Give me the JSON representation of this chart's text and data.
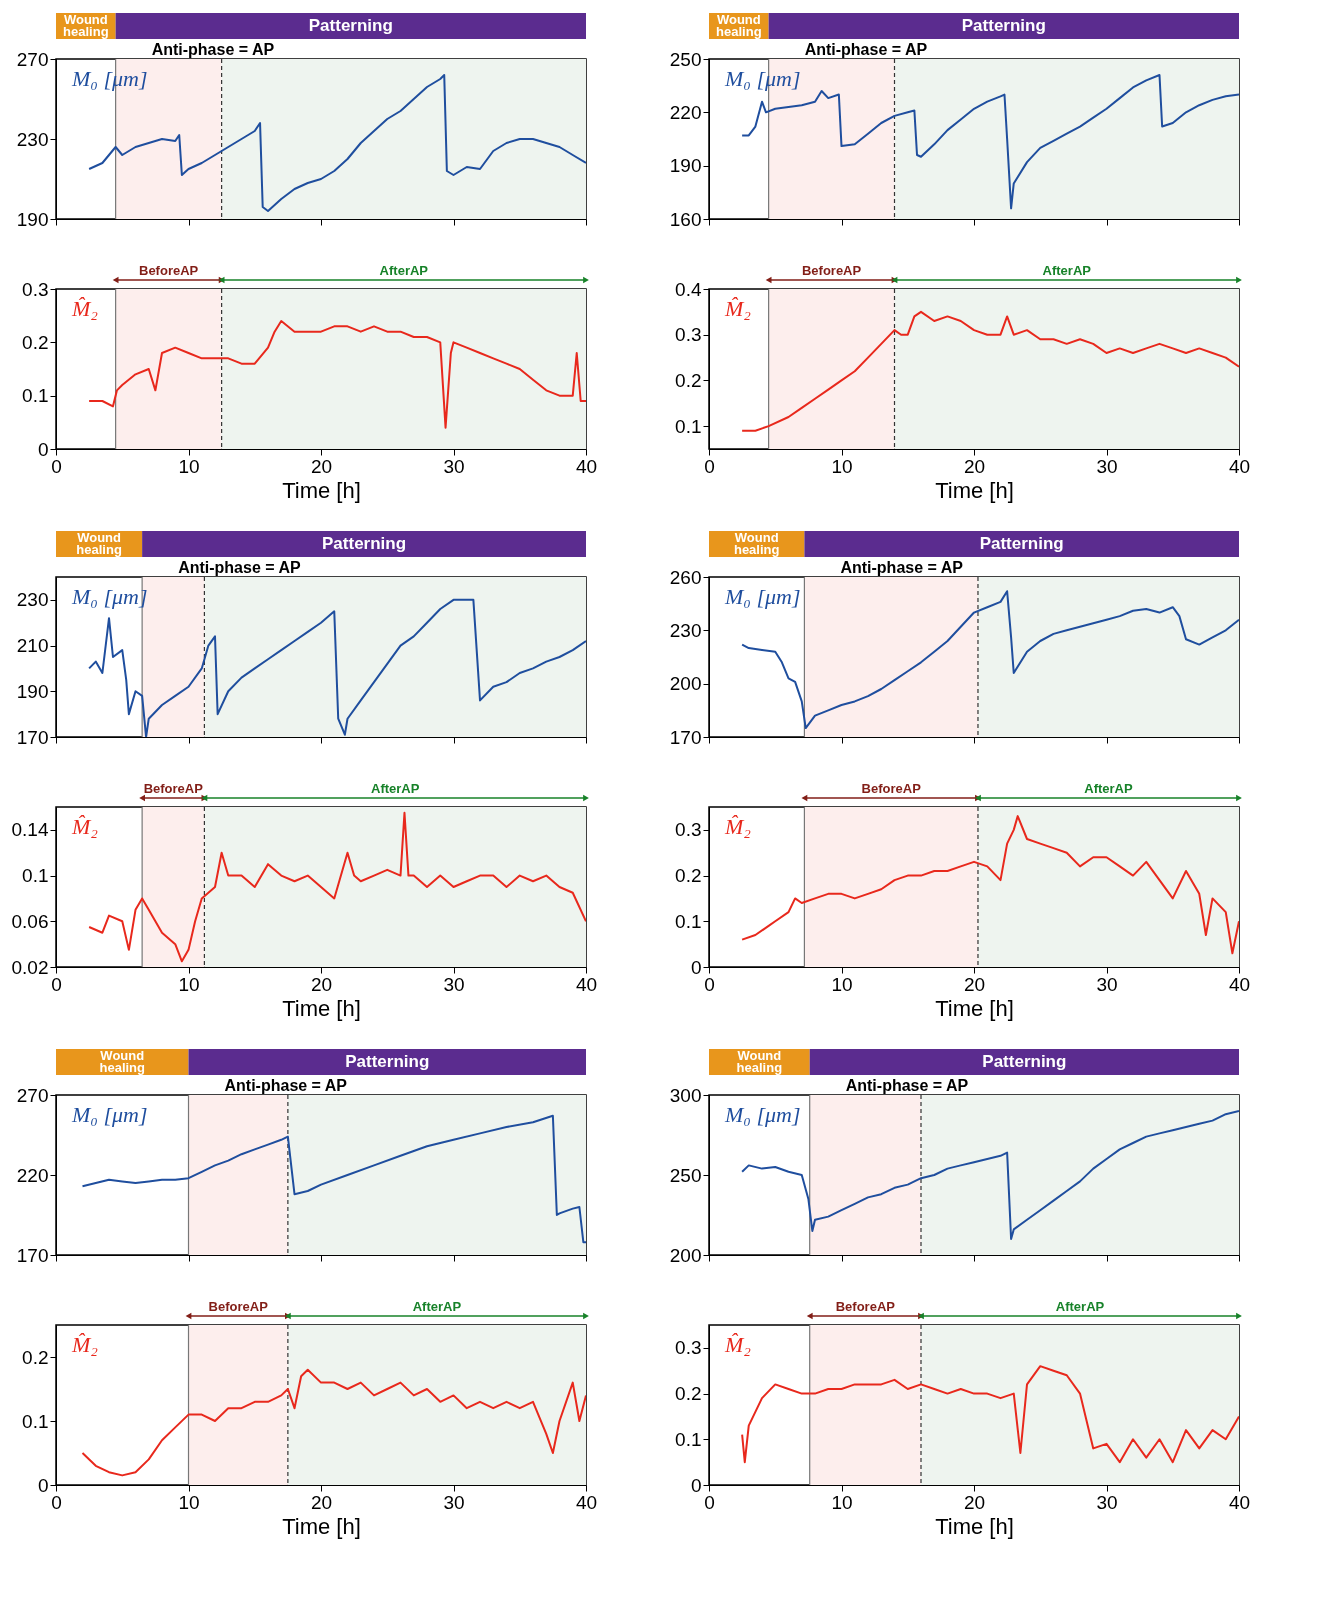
{
  "chart_data": [
    {
      "type": "line",
      "grid": false,
      "tick_labels": "y",
      "xlim": [
        0,
        40
      ],
      "xticks": [
        0,
        10,
        20,
        30,
        40
      ],
      "ylim": [
        190,
        270
      ],
      "yticks": [
        190,
        230,
        270
      ],
      "x": [
        2.5,
        3.5,
        4,
        4.5,
        5,
        6,
        7,
        8,
        9,
        9.3,
        9.5,
        10,
        11,
        12,
        13,
        14,
        15,
        15.4,
        15.6,
        16,
        17,
        18,
        19,
        20,
        21,
        22,
        23,
        24,
        25,
        26,
        27,
        28,
        29,
        29.3,
        29.5,
        30,
        31,
        32,
        33,
        34,
        35,
        36,
        37,
        38,
        39,
        40
      ],
      "series": [
        {
          "name": "M₀ [μm]",
          "color": "#1f4e9e",
          "values": [
            215,
            218,
            222,
            226,
            222,
            226,
            228,
            230,
            229,
            232,
            212,
            215,
            218,
            222,
            226,
            230,
            234,
            238,
            196,
            194,
            200,
            205,
            208,
            210,
            214,
            220,
            228,
            234,
            240,
            244,
            250,
            256,
            260,
            262,
            214,
            212,
            216,
            215,
            224,
            228,
            230,
            230,
            228,
            226,
            222,
            218
          ]
        }
      ],
      "bands": [
        {
          "axis": "x",
          "from": 4.5,
          "to": 12.5,
          "color": "#fdeeed"
        },
        {
          "axis": "x",
          "from": 12.5,
          "to": 40,
          "color": "#eef4ef"
        }
      ],
      "ref_lines": [
        {
          "axis": "x",
          "value": 4.5,
          "color": "#777777",
          "line_style": "solid"
        },
        {
          "axis": "x",
          "value": 12.5,
          "color": "#333333",
          "line_style": "dashed"
        }
      ],
      "annotations": [
        "Wound\nhealing",
        "Patterning",
        "Anti-phase = AP"
      ]
    },
    {
      "type": "line",
      "grid": false,
      "xlabel": "Time [h]",
      "xlim": [
        0,
        40
      ],
      "xticks": [
        0,
        10,
        20,
        30,
        40
      ],
      "ylim": [
        0,
        0.3
      ],
      "yticks": [
        0,
        0.1,
        0.2,
        0.3
      ],
      "x": [
        2.5,
        3.5,
        4.3,
        4.6,
        5,
        6,
        7,
        7.5,
        8,
        9,
        10,
        11,
        12,
        13,
        14,
        15,
        16,
        16.5,
        17,
        18,
        19,
        20,
        21,
        22,
        23,
        24,
        25,
        26,
        27,
        28,
        29,
        29.4,
        29.8,
        30,
        31,
        32,
        33,
        34,
        35,
        36,
        37,
        38,
        39,
        39.3,
        39.6,
        40
      ],
      "series": [
        {
          "name": "M̂₂",
          "color": "#e8281c",
          "values": [
            0.09,
            0.09,
            0.08,
            0.11,
            0.12,
            0.14,
            0.15,
            0.11,
            0.18,
            0.19,
            0.18,
            0.17,
            0.17,
            0.17,
            0.16,
            0.16,
            0.19,
            0.22,
            0.24,
            0.22,
            0.22,
            0.22,
            0.23,
            0.23,
            0.22,
            0.23,
            0.22,
            0.22,
            0.21,
            0.21,
            0.2,
            0.04,
            0.18,
            0.2,
            0.19,
            0.18,
            0.17,
            0.16,
            0.15,
            0.13,
            0.11,
            0.1,
            0.1,
            0.18,
            0.09,
            0.09
          ]
        }
      ],
      "bands": [
        {
          "axis": "x",
          "from": 4.5,
          "to": 12.5,
          "label": "BeforeAP",
          "color": "#fdeeed"
        },
        {
          "axis": "x",
          "from": 12.5,
          "to": 40,
          "label": "AfterAP",
          "color": "#eef4ef"
        }
      ],
      "ref_lines": [
        {
          "axis": "x",
          "value": 4.5,
          "color": "#777777",
          "line_style": "solid"
        },
        {
          "axis": "x",
          "value": 12.5,
          "color": "#333333",
          "line_style": "dashed"
        }
      ]
    },
    {
      "type": "line",
      "grid": false,
      "tick_labels": "y",
      "xlim": [
        0,
        40
      ],
      "xticks": [
        0,
        10,
        20,
        30,
        40
      ],
      "ylim": [
        160,
        250
      ],
      "yticks": [
        160,
        190,
        220,
        250
      ],
      "x": [
        2.5,
        3,
        3.5,
        4,
        4.3,
        5,
        6,
        7,
        8,
        8.5,
        9,
        9.8,
        10,
        11,
        12,
        13,
        14,
        15,
        15.5,
        15.7,
        16,
        17,
        18,
        19,
        20,
        21,
        22,
        22.3,
        22.5,
        22.8,
        23,
        24,
        25,
        26,
        27,
        28,
        29,
        30,
        31,
        32,
        33,
        34,
        34.2,
        35,
        36,
        37,
        38,
        39,
        40
      ],
      "series": [
        {
          "name": "M₀ [μm]",
          "color": "#1f4e9e",
          "values": [
            207,
            207,
            212,
            226,
            220,
            222,
            223,
            224,
            226,
            232,
            228,
            230,
            201,
            202,
            208,
            214,
            218,
            220,
            221,
            196,
            195,
            202,
            210,
            216,
            222,
            226,
            229,
            230,
            205,
            166,
            180,
            192,
            200,
            204,
            208,
            212,
            217,
            222,
            228,
            234,
            238,
            241,
            212,
            214,
            220,
            224,
            227,
            229,
            230
          ]
        }
      ],
      "bands": [
        {
          "axis": "x",
          "from": 4.5,
          "to": 14,
          "color": "#fdeeed"
        },
        {
          "axis": "x",
          "from": 14,
          "to": 40,
          "color": "#eef4ef"
        }
      ],
      "ref_lines": [
        {
          "axis": "x",
          "value": 4.5,
          "color": "#777777",
          "line_style": "solid"
        },
        {
          "axis": "x",
          "value": 14,
          "color": "#333333",
          "line_style": "dashed"
        }
      ],
      "annotations": [
        "Wound\nhealing",
        "Patterning",
        "Anti-phase = AP"
      ]
    },
    {
      "type": "line",
      "grid": false,
      "xlabel": "Time [h]",
      "xlim": [
        0,
        40
      ],
      "xticks": [
        0,
        10,
        20,
        30,
        40
      ],
      "ylim": [
        0.05,
        0.4
      ],
      "yticks": [
        0.1,
        0.2,
        0.3,
        0.4
      ],
      "x": [
        2.5,
        3.5,
        4.5,
        6,
        7,
        8,
        9,
        10,
        11,
        12,
        13,
        14,
        14.5,
        15,
        15.5,
        16,
        17,
        18,
        19,
        20,
        21,
        22,
        22.5,
        23,
        24,
        25,
        26,
        27,
        28,
        29,
        30,
        31,
        32,
        33,
        34,
        35,
        36,
        37,
        38,
        39,
        40
      ],
      "series": [
        {
          "name": "M̂₂",
          "color": "#e8281c",
          "values": [
            0.09,
            0.09,
            0.1,
            0.12,
            0.14,
            0.16,
            0.18,
            0.2,
            0.22,
            0.25,
            0.28,
            0.31,
            0.3,
            0.3,
            0.34,
            0.35,
            0.33,
            0.34,
            0.33,
            0.31,
            0.3,
            0.3,
            0.34,
            0.3,
            0.31,
            0.29,
            0.29,
            0.28,
            0.29,
            0.28,
            0.26,
            0.27,
            0.26,
            0.27,
            0.28,
            0.27,
            0.26,
            0.27,
            0.26,
            0.25,
            0.23
          ]
        }
      ],
      "bands": [
        {
          "axis": "x",
          "from": 4.5,
          "to": 14,
          "label": "BeforeAP",
          "color": "#fdeeed"
        },
        {
          "axis": "x",
          "from": 14,
          "to": 40,
          "label": "AfterAP",
          "color": "#eef4ef"
        }
      ],
      "ref_lines": [
        {
          "axis": "x",
          "value": 4.5,
          "color": "#777777",
          "line_style": "solid"
        },
        {
          "axis": "x",
          "value": 14,
          "color": "#333333",
          "line_style": "dashed"
        }
      ]
    },
    {
      "type": "line",
      "grid": false,
      "tick_labels": "y",
      "xlim": [
        0,
        40
      ],
      "xticks": [
        0,
        10,
        20,
        30,
        40
      ],
      "ylim": [
        170,
        240
      ],
      "yticks": [
        170,
        190,
        210,
        230
      ],
      "x": [
        2.5,
        3,
        3.5,
        4,
        4.3,
        5,
        5.3,
        5.5,
        6,
        6.5,
        6.8,
        7,
        8,
        9,
        10,
        11,
        11.5,
        12,
        12.2,
        13,
        14,
        15,
        16,
        17,
        18,
        19,
        20,
        21,
        21.3,
        21.8,
        22,
        23,
        24,
        25,
        26,
        27,
        28,
        29,
        30,
        31.5,
        32,
        33,
        34,
        35,
        36,
        37,
        38,
        39,
        40
      ],
      "series": [
        {
          "name": "M₀ [μm]",
          "color": "#1f4e9e",
          "values": [
            200,
            203,
            198,
            222,
            205,
            208,
            195,
            180,
            190,
            188,
            170,
            178,
            184,
            188,
            192,
            200,
            210,
            214,
            180,
            190,
            196,
            200,
            204,
            208,
            212,
            216,
            220,
            225,
            178,
            171,
            178,
            186,
            194,
            202,
            210,
            214,
            220,
            226,
            230,
            230,
            186,
            192,
            194,
            198,
            200,
            203,
            205,
            208,
            212
          ]
        }
      ],
      "bands": [
        {
          "axis": "x",
          "from": 6.5,
          "to": 11.2,
          "color": "#fdeeed"
        },
        {
          "axis": "x",
          "from": 11.2,
          "to": 40,
          "color": "#eef4ef"
        }
      ],
      "ref_lines": [
        {
          "axis": "x",
          "value": 6.5,
          "color": "#777777",
          "line_style": "solid"
        },
        {
          "axis": "x",
          "value": 11.2,
          "color": "#333333",
          "line_style": "dashed"
        }
      ],
      "annotations": [
        "Wound\nhealing",
        "Patterning",
        "Anti-phase = AP"
      ]
    },
    {
      "type": "line",
      "grid": false,
      "xlabel": "Time [h]",
      "xlim": [
        0,
        40
      ],
      "xticks": [
        0,
        10,
        20,
        30,
        40
      ],
      "ylim": [
        0.02,
        0.16
      ],
      "yticks": [
        0.02,
        0.06,
        0.1,
        0.14
      ],
      "x": [
        2.5,
        3.5,
        4,
        5,
        5.5,
        6,
        6.5,
        7,
        8,
        9,
        9.5,
        10,
        10.5,
        11,
        12,
        12.5,
        13,
        14,
        15,
        16,
        17,
        18,
        19,
        20,
        21,
        22,
        22.5,
        23,
        24,
        25,
        26,
        26.3,
        26.6,
        27,
        28,
        29,
        30,
        31,
        32,
        33,
        34,
        35,
        36,
        37,
        38,
        39,
        40
      ],
      "series": [
        {
          "name": "M̂₂",
          "color": "#e8281c",
          "values": [
            0.055,
            0.05,
            0.065,
            0.06,
            0.035,
            0.07,
            0.08,
            0.07,
            0.05,
            0.04,
            0.025,
            0.035,
            0.06,
            0.08,
            0.09,
            0.12,
            0.1,
            0.1,
            0.09,
            0.11,
            0.1,
            0.095,
            0.1,
            0.09,
            0.08,
            0.12,
            0.1,
            0.095,
            0.1,
            0.105,
            0.1,
            0.155,
            0.1,
            0.1,
            0.09,
            0.1,
            0.09,
            0.095,
            0.1,
            0.1,
            0.09,
            0.1,
            0.095,
            0.1,
            0.09,
            0.085,
            0.06
          ]
        }
      ],
      "bands": [
        {
          "axis": "x",
          "from": 6.5,
          "to": 11.2,
          "label": "BeforeAP",
          "color": "#fdeeed"
        },
        {
          "axis": "x",
          "from": 11.2,
          "to": 40,
          "label": "AfterAP",
          "color": "#eef4ef"
        }
      ],
      "ref_lines": [
        {
          "axis": "x",
          "value": 6.5,
          "color": "#777777",
          "line_style": "solid"
        },
        {
          "axis": "x",
          "value": 11.2,
          "color": "#333333",
          "line_style": "dashed"
        }
      ]
    },
    {
      "type": "line",
      "grid": false,
      "tick_labels": "y",
      "xlim": [
        0,
        40
      ],
      "xticks": [
        0,
        10,
        20,
        30,
        40
      ],
      "ylim": [
        170,
        260
      ],
      "yticks": [
        170,
        200,
        230,
        260
      ],
      "x": [
        2.5,
        3,
        4,
        5,
        5.5,
        6,
        6.5,
        7,
        7.3,
        8,
        9,
        10,
        11,
        12,
        13,
        14,
        15,
        16,
        17,
        18,
        19,
        20,
        21,
        22,
        22.5,
        22.8,
        23,
        24,
        25,
        26,
        27,
        28,
        29,
        30,
        31,
        32,
        33,
        34,
        35,
        35.5,
        36,
        37,
        38,
        39,
        40
      ],
      "series": [
        {
          "name": "M₀ [μm]",
          "color": "#1f4e9e",
          "values": [
            222,
            220,
            219,
            218,
            212,
            203,
            201,
            190,
            175,
            182,
            185,
            188,
            190,
            193,
            197,
            202,
            207,
            212,
            218,
            224,
            232,
            240,
            243,
            246,
            252,
            226,
            206,
            218,
            224,
            228,
            230,
            232,
            234,
            236,
            238,
            241,
            242,
            240,
            243,
            238,
            225,
            222,
            226,
            230,
            236
          ]
        }
      ],
      "bands": [
        {
          "axis": "x",
          "from": 7.2,
          "to": 20.3,
          "color": "#fdeeed"
        },
        {
          "axis": "x",
          "from": 20.3,
          "to": 40,
          "color": "#eef4ef"
        }
      ],
      "ref_lines": [
        {
          "axis": "x",
          "value": 7.2,
          "color": "#777777",
          "line_style": "solid"
        },
        {
          "axis": "x",
          "value": 20.3,
          "color": "#333333",
          "line_style": "dashed"
        }
      ],
      "annotations": [
        "Wound\nhealing",
        "Patterning",
        "Anti-phase = AP"
      ]
    },
    {
      "type": "line",
      "grid": false,
      "xlabel": "Time [h]",
      "xlim": [
        0,
        40
      ],
      "xticks": [
        0,
        10,
        20,
        30,
        40
      ],
      "ylim": [
        0,
        0.35
      ],
      "yticks": [
        0,
        0.1,
        0.2,
        0.3
      ],
      "x": [
        2.5,
        3.5,
        4.5,
        5,
        6,
        6.5,
        7,
        8,
        9,
        10,
        11,
        12,
        13,
        14,
        15,
        16,
        17,
        18,
        19,
        20,
        21,
        22,
        22.5,
        23,
        23.3,
        24,
        25,
        26,
        27,
        28,
        29,
        30,
        31,
        32,
        33,
        34,
        35,
        36,
        37,
        37.5,
        38,
        39,
        39.5,
        40
      ],
      "series": [
        {
          "name": "M̂₂",
          "color": "#e8281c",
          "values": [
            0.06,
            0.07,
            0.09,
            0.1,
            0.12,
            0.15,
            0.14,
            0.15,
            0.16,
            0.16,
            0.15,
            0.16,
            0.17,
            0.19,
            0.2,
            0.2,
            0.21,
            0.21,
            0.22,
            0.23,
            0.22,
            0.19,
            0.27,
            0.3,
            0.33,
            0.28,
            0.27,
            0.26,
            0.25,
            0.22,
            0.24,
            0.24,
            0.22,
            0.2,
            0.23,
            0.19,
            0.15,
            0.21,
            0.16,
            0.07,
            0.15,
            0.12,
            0.03,
            0.1
          ]
        }
      ],
      "bands": [
        {
          "axis": "x",
          "from": 7.2,
          "to": 20.3,
          "label": "BeforeAP",
          "color": "#fdeeed"
        },
        {
          "axis": "x",
          "from": 20.3,
          "to": 40,
          "label": "AfterAP",
          "color": "#eef4ef"
        }
      ],
      "ref_lines": [
        {
          "axis": "x",
          "value": 7.2,
          "color": "#777777",
          "line_style": "solid"
        },
        {
          "axis": "x",
          "value": 20.3,
          "color": "#333333",
          "line_style": "dashed"
        }
      ]
    },
    {
      "type": "line",
      "grid": false,
      "tick_labels": "y",
      "xlim": [
        0,
        40
      ],
      "xticks": [
        0,
        10,
        20,
        30,
        40
      ],
      "ylim": [
        170,
        270
      ],
      "yticks": [
        170,
        220,
        270
      ],
      "x": [
        2,
        3,
        4,
        5,
        6,
        7,
        8,
        9,
        10,
        11,
        12,
        13,
        14,
        15,
        16,
        17,
        17.5,
        18,
        19,
        20,
        22,
        24,
        26,
        28,
        30,
        32,
        34,
        36,
        37.5,
        37.8,
        38,
        39,
        39.5,
        39.8,
        40
      ],
      "series": [
        {
          "name": "M₀ [μm]",
          "color": "#1f4e9e",
          "values": [
            213,
            215,
            217,
            216,
            215,
            216,
            217,
            217,
            218,
            222,
            226,
            229,
            233,
            236,
            239,
            242,
            244,
            208,
            210,
            214,
            220,
            226,
            232,
            238,
            242,
            246,
            250,
            253,
            257,
            195,
            196,
            199,
            200,
            178,
            178
          ]
        }
      ],
      "bands": [
        {
          "axis": "x",
          "from": 10,
          "to": 17.5,
          "color": "#fdeeed"
        },
        {
          "axis": "x",
          "from": 17.5,
          "to": 40,
          "color": "#eef4ef"
        }
      ],
      "ref_lines": [
        {
          "axis": "x",
          "value": 10,
          "color": "#777777",
          "line_style": "solid"
        },
        {
          "axis": "x",
          "value": 17.5,
          "color": "#333333",
          "line_style": "dashed"
        }
      ],
      "annotations": [
        "Wound\nhealing",
        "Patterning",
        "Anti-phase = AP"
      ]
    },
    {
      "type": "line",
      "grid": false,
      "xlabel": "Time [h]",
      "xlim": [
        0,
        40
      ],
      "xticks": [
        0,
        10,
        20,
        30,
        40
      ],
      "ylim": [
        0,
        0.25
      ],
      "yticks": [
        0,
        0.1,
        0.2
      ],
      "x": [
        2,
        3,
        4,
        5,
        6,
        7,
        8,
        9,
        10,
        11,
        12,
        13,
        14,
        15,
        16,
        17,
        17.5,
        18,
        18.5,
        19,
        20,
        21,
        22,
        23,
        24,
        25,
        26,
        27,
        28,
        29,
        30,
        31,
        32,
        33,
        34,
        35,
        36,
        37,
        37.5,
        38,
        39,
        39.5,
        40
      ],
      "series": [
        {
          "name": "M̂₂",
          "color": "#e8281c",
          "values": [
            0.05,
            0.03,
            0.02,
            0.015,
            0.02,
            0.04,
            0.07,
            0.09,
            0.11,
            0.11,
            0.1,
            0.12,
            0.12,
            0.13,
            0.13,
            0.14,
            0.15,
            0.12,
            0.17,
            0.18,
            0.16,
            0.16,
            0.15,
            0.16,
            0.14,
            0.15,
            0.16,
            0.14,
            0.15,
            0.13,
            0.14,
            0.12,
            0.13,
            0.12,
            0.13,
            0.12,
            0.13,
            0.08,
            0.05,
            0.1,
            0.16,
            0.1,
            0.14
          ]
        }
      ],
      "bands": [
        {
          "axis": "x",
          "from": 10,
          "to": 17.5,
          "label": "BeforeAP",
          "color": "#fdeeed"
        },
        {
          "axis": "x",
          "from": 17.5,
          "to": 40,
          "label": "AfterAP",
          "color": "#eef4ef"
        }
      ],
      "ref_lines": [
        {
          "axis": "x",
          "value": 10,
          "color": "#777777",
          "line_style": "solid"
        },
        {
          "axis": "x",
          "value": 17.5,
          "color": "#333333",
          "line_style": "dashed"
        }
      ]
    },
    {
      "type": "line",
      "grid": false,
      "tick_labels": "y",
      "xlim": [
        0,
        40
      ],
      "xticks": [
        0,
        10,
        20,
        30,
        40
      ],
      "ylim": [
        200,
        300
      ],
      "yticks": [
        200,
        250,
        300
      ],
      "x": [
        2.5,
        3,
        4,
        5,
        6,
        7,
        7.5,
        7.8,
        8,
        9,
        10,
        11,
        12,
        13,
        14,
        15,
        16,
        17,
        18,
        19,
        20,
        21,
        22,
        22.5,
        22.8,
        23,
        24,
        25,
        26,
        27,
        28,
        29,
        30,
        31,
        32,
        33,
        34,
        35,
        36,
        37,
        38,
        39,
        40
      ],
      "series": [
        {
          "name": "M₀ [μm]",
          "color": "#1f4e9e",
          "values": [
            252,
            256,
            254,
            255,
            252,
            250,
            235,
            215,
            222,
            224,
            228,
            232,
            236,
            238,
            242,
            244,
            248,
            250,
            254,
            256,
            258,
            260,
            262,
            264,
            210,
            216,
            222,
            228,
            234,
            240,
            246,
            254,
            260,
            266,
            270,
            274,
            276,
            278,
            280,
            282,
            284,
            288,
            290
          ]
        }
      ],
      "bands": [
        {
          "axis": "x",
          "from": 7.6,
          "to": 16,
          "color": "#fdeeed"
        },
        {
          "axis": "x",
          "from": 16,
          "to": 40,
          "color": "#eef4ef"
        }
      ],
      "ref_lines": [
        {
          "axis": "x",
          "value": 7.6,
          "color": "#777777",
          "line_style": "solid"
        },
        {
          "axis": "x",
          "value": 16,
          "color": "#333333",
          "line_style": "dashed"
        }
      ],
      "annotations": [
        "Wound\nhealing",
        "Patterning",
        "Anti-phase = AP"
      ]
    },
    {
      "type": "line",
      "grid": false,
      "xlabel": "Time [h]",
      "xlim": [
        0,
        40
      ],
      "xticks": [
        0,
        10,
        20,
        30,
        40
      ],
      "ylim": [
        0,
        0.35
      ],
      "yticks": [
        0,
        0.1,
        0.2,
        0.3
      ],
      "x": [
        2.5,
        2.7,
        3,
        4,
        5,
        6,
        7,
        8,
        9,
        10,
        11,
        12,
        13,
        14,
        15,
        16,
        17,
        18,
        19,
        20,
        21,
        22,
        23,
        23.5,
        24,
        25,
        26,
        27,
        28,
        29,
        30,
        31,
        32,
        33,
        34,
        35,
        36,
        37,
        38,
        39,
        40
      ],
      "series": [
        {
          "name": "M̂₂",
          "color": "#e8281c",
          "values": [
            0.11,
            0.05,
            0.13,
            0.19,
            0.22,
            0.21,
            0.2,
            0.2,
            0.21,
            0.21,
            0.22,
            0.22,
            0.22,
            0.23,
            0.21,
            0.22,
            0.21,
            0.2,
            0.21,
            0.2,
            0.2,
            0.19,
            0.2,
            0.07,
            0.22,
            0.26,
            0.25,
            0.24,
            0.2,
            0.08,
            0.09,
            0.05,
            0.1,
            0.06,
            0.1,
            0.05,
            0.12,
            0.08,
            0.12,
            0.1,
            0.15
          ]
        }
      ],
      "bands": [
        {
          "axis": "x",
          "from": 7.6,
          "to": 16,
          "label": "BeforeAP",
          "color": "#fdeeed"
        },
        {
          "axis": "x",
          "from": 16,
          "to": 40,
          "label": "AfterAP",
          "color": "#eef4ef"
        }
      ],
      "ref_lines": [
        {
          "axis": "x",
          "value": 7.6,
          "color": "#777777",
          "line_style": "solid"
        },
        {
          "axis": "x",
          "value": 16,
          "color": "#333333",
          "line_style": "dashed"
        }
      ]
    }
  ]
}
